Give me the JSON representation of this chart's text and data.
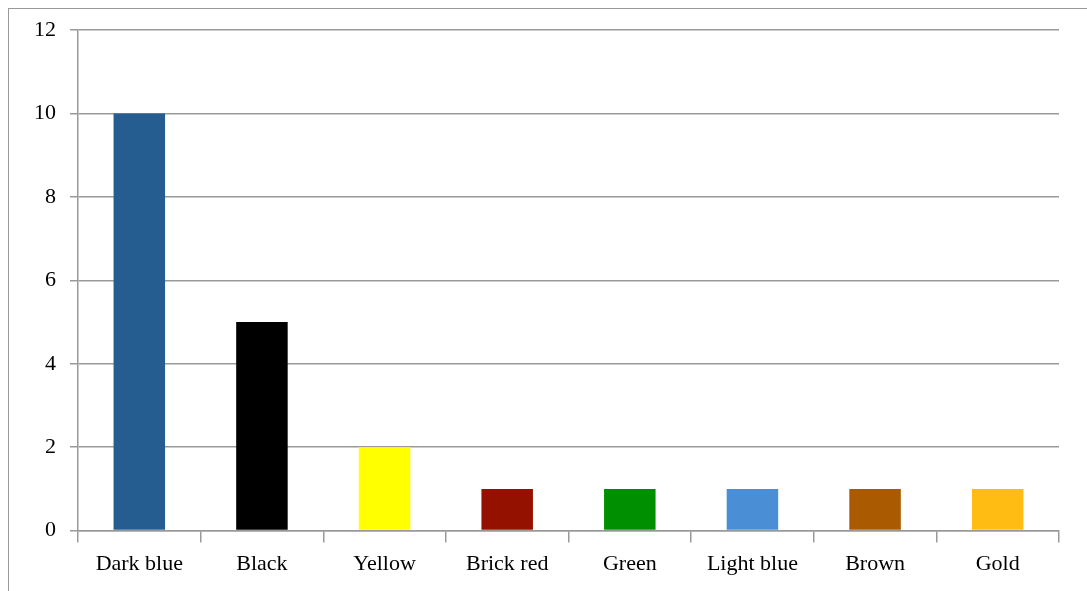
{
  "chart_data": {
    "type": "bar",
    "categories": [
      "Dark blue",
      "Black",
      "Yellow",
      "Brick red",
      "Green",
      "Light blue",
      "Brown",
      "Gold"
    ],
    "values": [
      10,
      5,
      2,
      1,
      1,
      1,
      1,
      1
    ],
    "colors": [
      "#265d91",
      "#000000",
      "#ffff00",
      "#941100",
      "#008f00",
      "#4a8fd6",
      "#aa5a00",
      "#ffbd14"
    ],
    "ylim": [
      0,
      12
    ],
    "yticks": [
      0,
      2,
      4,
      6,
      8,
      10,
      12
    ],
    "grid": "y",
    "legend": false
  }
}
